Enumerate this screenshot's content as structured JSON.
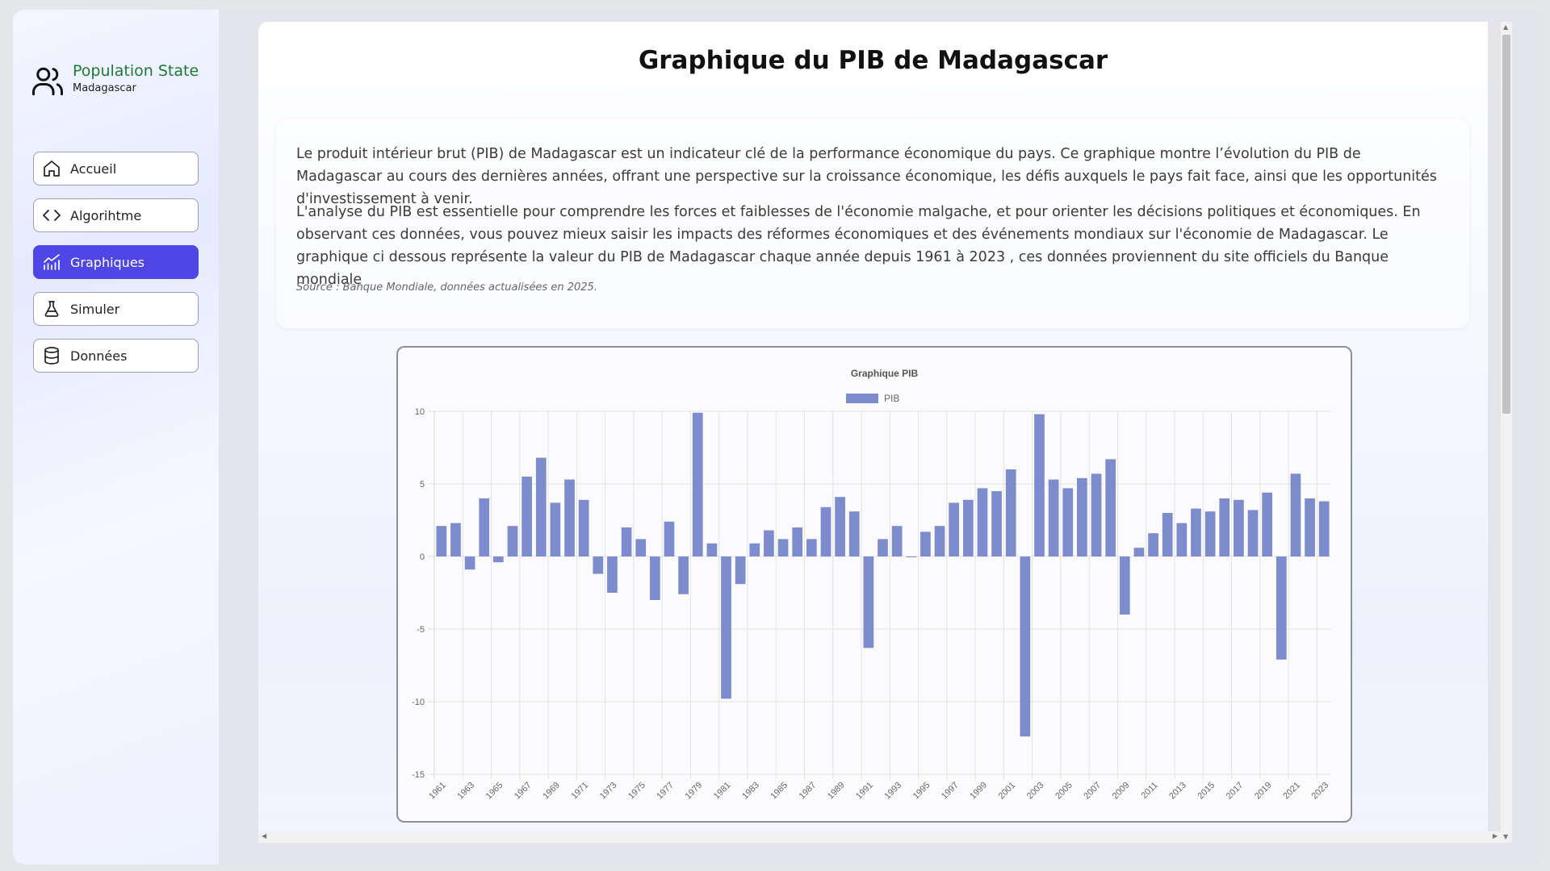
{
  "brand": {
    "title": "Population State",
    "subtitle": "Madagascar",
    "icon": "users-icon"
  },
  "nav": [
    {
      "label": "Accueil",
      "icon": "home-icon",
      "active": false
    },
    {
      "label": "Algorihtme",
      "icon": "code-icon",
      "active": false
    },
    {
      "label": "Graphiques",
      "icon": "chart-icon",
      "active": true
    },
    {
      "label": "Simuler",
      "icon": "flask-icon",
      "active": false
    },
    {
      "label": "Données",
      "icon": "database-icon",
      "active": false
    }
  ],
  "page": {
    "title": "Graphique du PIB de Madagascar",
    "paragraph1": "Le produit intérieur brut (PIB) de Madagascar est un indicateur clé de la performance économique du pays. Ce graphique montre l’évolution du PIB de Madagascar au cours des dernières années, offrant une perspective sur la croissance économique, les défis auxquels le pays fait face, ainsi que les opportunités d'investissement à venir.",
    "paragraph2": "L'analyse du PIB est essentielle pour comprendre les forces et faiblesses de l'économie malgache, et pour orienter les décisions politiques et économiques. En observant ces données, vous pouvez mieux saisir les impacts des réformes économiques et des événements mondiaux sur l'économie de Madagascar. Le graphique ci dessous représente la valeur du PIB de Madagascar chaque année depuis 1961 à 2023 , ces données proviennent du site officiels du Banque mondiale",
    "source": "Source : Banque Mondiale, données actualisées en 2025."
  },
  "colors": {
    "accent": "#4f46e5",
    "brand": "#1f7a32",
    "bar": "#6f7fc6"
  },
  "chart_data": {
    "type": "bar",
    "title": "Graphique PIB",
    "legend": "PIB",
    "legend_position": "top",
    "grid": true,
    "ylim": [
      -15,
      10
    ],
    "yticks": [
      10,
      5,
      0,
      -5,
      -10,
      -15
    ],
    "x": [
      1961,
      1962,
      1963,
      1964,
      1965,
      1966,
      1967,
      1968,
      1969,
      1970,
      1971,
      1972,
      1973,
      1974,
      1975,
      1976,
      1977,
      1978,
      1979,
      1980,
      1981,
      1982,
      1983,
      1984,
      1985,
      1986,
      1987,
      1988,
      1989,
      1990,
      1991,
      1992,
      1993,
      1994,
      1995,
      1996,
      1997,
      1998,
      1999,
      2000,
      2001,
      2002,
      2003,
      2004,
      2005,
      2006,
      2007,
      2008,
      2009,
      2010,
      2011,
      2012,
      2013,
      2014,
      2015,
      2016,
      2017,
      2018,
      2019,
      2020,
      2021,
      2022,
      2023
    ],
    "xtick_labels": [
      "1961",
      "1963",
      "1965",
      "1967",
      "1969",
      "1971",
      "1973",
      "1975",
      "1977",
      "1979",
      "1981",
      "1983",
      "1985",
      "1987",
      "1989",
      "1991",
      "1993",
      "1995",
      "1997",
      "1999",
      "2001",
      "2003",
      "2005",
      "2007",
      "2009",
      "2011",
      "2013",
      "2015",
      "2017",
      "2019",
      "2021",
      "2023"
    ],
    "values": [
      2.1,
      2.3,
      -0.9,
      4.0,
      -0.4,
      2.1,
      5.5,
      6.8,
      3.7,
      5.3,
      3.9,
      -1.2,
      -2.5,
      2.0,
      1.2,
      -3.0,
      2.4,
      -2.6,
      9.9,
      0.9,
      -9.8,
      -1.9,
      0.9,
      1.8,
      1.2,
      2.0,
      1.2,
      3.4,
      4.1,
      3.1,
      -6.3,
      1.2,
      2.1,
      0.0,
      1.7,
      2.1,
      3.7,
      3.9,
      4.7,
      4.5,
      6.0,
      -12.4,
      9.8,
      5.3,
      4.7,
      5.4,
      5.7,
      6.7,
      -4.0,
      0.6,
      1.6,
      3.0,
      2.3,
      3.3,
      3.1,
      4.0,
      3.9,
      3.2,
      4.4,
      -7.1,
      5.7,
      4.0,
      3.8
    ]
  }
}
